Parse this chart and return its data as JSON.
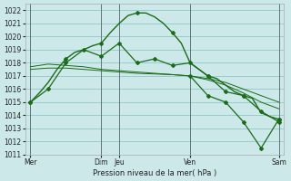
{
  "background_color": "#cce8e8",
  "grid_color": "#99cccc",
  "line_color": "#1a6b1a",
  "marker_color": "#1a6b1a",
  "xlabel": "Pression niveau de la mer( hPa )",
  "ylim": [
    1011,
    1022.5
  ],
  "xlim": [
    -0.3,
    14.3
  ],
  "xtick_positions": [
    0,
    4,
    5,
    9,
    14
  ],
  "xtick_labels": [
    "Mer",
    "Dim",
    "Jeu",
    "Ven",
    "Sam"
  ],
  "vlines_x": [
    0,
    4,
    5,
    9,
    14
  ],
  "series_main": {
    "x": [
      0,
      0.5,
      1,
      1.5,
      2,
      2.5,
      3,
      3.5,
      4,
      4.5,
      5,
      5.5,
      6,
      6.5,
      7,
      7.5,
      8,
      8.5,
      9,
      9.5,
      10,
      10.5,
      11,
      11.5,
      12,
      12.5,
      13,
      13.5,
      14
    ],
    "y": [
      1015,
      1015.7,
      1016.5,
      1017.5,
      1018.3,
      1018.8,
      1019,
      1019.3,
      1019.5,
      1020.3,
      1021.0,
      1021.6,
      1021.8,
      1021.8,
      1021.5,
      1021.0,
      1020.3,
      1019.5,
      1018.0,
      1017.5,
      1017.0,
      1016.8,
      1016.3,
      1015.8,
      1015.5,
      1015.3,
      1014.2,
      1013.9,
      1013.7
    ]
  },
  "series_flat1": {
    "x": [
      0,
      1,
      2,
      3,
      4,
      5,
      6,
      7,
      8,
      9,
      10,
      11,
      12,
      13,
      14
    ],
    "y": [
      1017.7,
      1017.9,
      1017.8,
      1017.7,
      1017.5,
      1017.4,
      1017.3,
      1017.2,
      1017.1,
      1017.0,
      1016.8,
      1016.5,
      1016.0,
      1015.5,
      1015.0
    ]
  },
  "series_flat2": {
    "x": [
      0,
      1,
      2,
      3,
      4,
      5,
      6,
      7,
      8,
      9,
      10,
      11,
      12,
      13,
      14
    ],
    "y": [
      1017.5,
      1017.6,
      1017.6,
      1017.5,
      1017.4,
      1017.3,
      1017.2,
      1017.15,
      1017.1,
      1017.0,
      1016.7,
      1016.3,
      1015.7,
      1015.0,
      1014.5
    ]
  },
  "series_markers1": {
    "x": [
      0,
      1,
      2,
      3,
      4,
      5,
      6,
      7,
      8,
      9,
      10,
      11,
      12,
      13,
      14
    ],
    "y": [
      1015,
      1016,
      1018,
      1019,
      1018.5,
      1019.5,
      1018,
      1018.3,
      1017.8,
      1018.0,
      1017.0,
      1015.8,
      1015.5,
      1014.3,
      1013.5
    ]
  },
  "series_drop": {
    "x": [
      9,
      10,
      11,
      12,
      13,
      14
    ],
    "y": [
      1017.0,
      1015.5,
      1015.0,
      1013.5,
      1011.5,
      1013.7
    ]
  }
}
